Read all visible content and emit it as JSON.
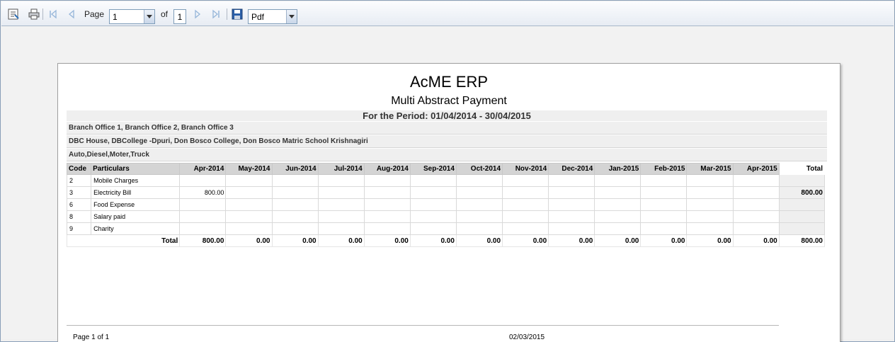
{
  "toolbar": {
    "page_label": "Page",
    "page_value": "1",
    "of_label": "of",
    "total_pages": "1",
    "export_format": "Pdf"
  },
  "report": {
    "title": "AcME ERP",
    "subtitle": "Multi Abstract Payment",
    "period": "For the Period: 01/04/2014 - 30/04/2015",
    "branches": "Branch Office 1, Branch Office 2, Branch Office 3",
    "projects": "DBC House, DBCollege -Dpuri, Don Bosco College, Don Bosco Matric School Krishnagiri",
    "categories": "Auto,Diesel,Moter,Truck",
    "columns": [
      "Code",
      "Particulars",
      "Apr-2014",
      "May-2014",
      "Jun-2014",
      "Jul-2014",
      "Aug-2014",
      "Sep-2014",
      "Oct-2014",
      "Nov-2014",
      "Dec-2014",
      "Jan-2015",
      "Feb-2015",
      "Mar-2015",
      "Apr-2015",
      "Total"
    ],
    "rows": [
      {
        "code": "2",
        "particulars": "Mobile Charges",
        "values": [
          "",
          "",
          "",
          "",
          "",
          "",
          "",
          "",
          "",
          "",
          "",
          "",
          ""
        ],
        "total": ""
      },
      {
        "code": "3",
        "particulars": "Electricity Bill",
        "values": [
          "800.00",
          "",
          "",
          "",
          "",
          "",
          "",
          "",
          "",
          "",
          "",
          "",
          ""
        ],
        "total": "800.00"
      },
      {
        "code": "6",
        "particulars": "Food Expense",
        "values": [
          "",
          "",
          "",
          "",
          "",
          "",
          "",
          "",
          "",
          "",
          "",
          "",
          ""
        ],
        "total": ""
      },
      {
        "code": "8",
        "particulars": "Salary paid",
        "values": [
          "",
          "",
          "",
          "",
          "",
          "",
          "",
          "",
          "",
          "",
          "",
          "",
          ""
        ],
        "total": ""
      },
      {
        "code": "9",
        "particulars": "Charity",
        "values": [
          "",
          "",
          "",
          "",
          "",
          "",
          "",
          "",
          "",
          "",
          "",
          "",
          ""
        ],
        "total": ""
      }
    ],
    "total_label": "Total",
    "totals": [
      "800.00",
      "0.00",
      "0.00",
      "0.00",
      "0.00",
      "0.00",
      "0.00",
      "0.00",
      "0.00",
      "0.00",
      "0.00",
      "0.00",
      "0.00"
    ],
    "grand_total": "800.00",
    "footer_page": "Page 1 of 1",
    "footer_date": "02/03/2015"
  }
}
